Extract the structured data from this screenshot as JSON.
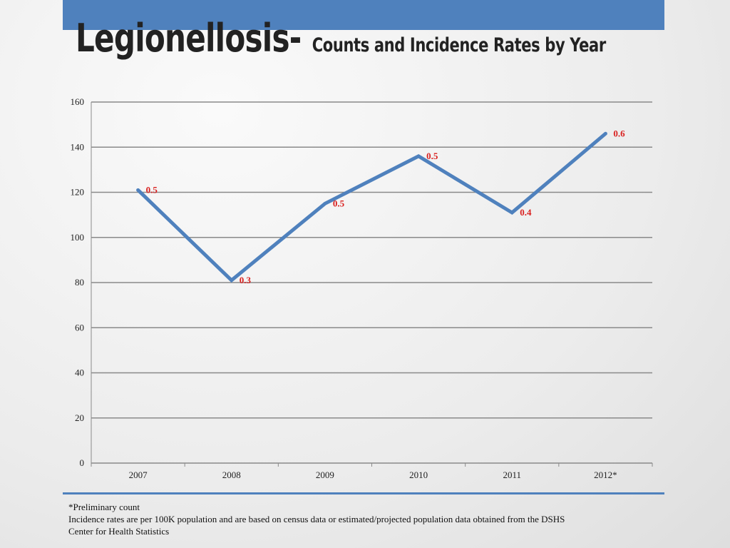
{
  "header": {
    "title_main": "Legionellosis-",
    "title_sub": "Counts and Incidence Rates by Year",
    "accent_color": "#4f81bd"
  },
  "chart_data": {
    "type": "line",
    "categories": [
      "2007",
      "2008",
      "2009",
      "2010",
      "2011",
      "2012*"
    ],
    "series": [
      {
        "values": [
          121,
          81,
          115,
          136,
          111,
          146
        ],
        "color": "#4f81bd"
      }
    ],
    "data_labels": [
      "0.5",
      "0.3",
      "0.5",
      "0.5",
      "0.4",
      "0.6"
    ],
    "data_label_color": "#d9201f",
    "ylim": [
      0,
      160
    ],
    "yticks": [
      0,
      20,
      40,
      60,
      80,
      100,
      120,
      140,
      160
    ],
    "grid": true,
    "legend": "none"
  },
  "footer": {
    "lines": [
      "*Preliminary count",
      "Incidence rates are per 100K population and are based on census data or estimated/projected population data obtained from the DSHS",
      "Center for Health Statistics"
    ]
  }
}
